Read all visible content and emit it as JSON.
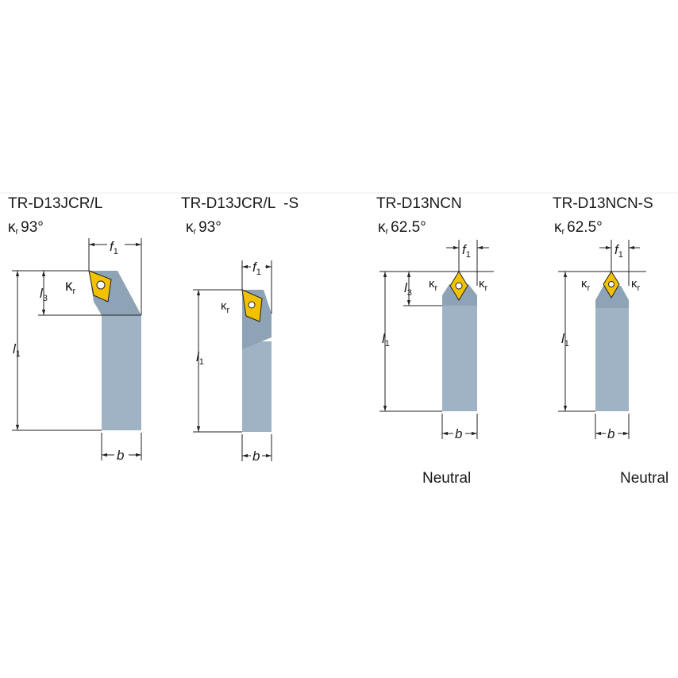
{
  "colors": {
    "holder_body": "#9fb3c4",
    "holder_head": "#8ea3b5",
    "insert": "#f2c200"
  },
  "tools": [
    {
      "name": "TR-D13JCR/L",
      "kr_symbol": "κ",
      "kr_sub": "r",
      "angle": "93°"
    },
    {
      "name": "TR-D13JCR/L  -S",
      "kr_symbol": "κ",
      "kr_sub": "r",
      "angle": "93°"
    },
    {
      "name": "TR-D13NCN",
      "kr_symbol": "κ",
      "kr_sub": "r",
      "angle": "62.5°",
      "note": "Neutral"
    },
    {
      "name": "TR-D13NCN-S",
      "kr_symbol": "κ",
      "kr_sub": "r",
      "angle": "62.5°",
      "note": "Neutral"
    }
  ],
  "dims": {
    "l": "l",
    "f": "f",
    "b": "b",
    "sub1": "1",
    "sub3": "3",
    "k": "κ",
    "kr": "r"
  }
}
